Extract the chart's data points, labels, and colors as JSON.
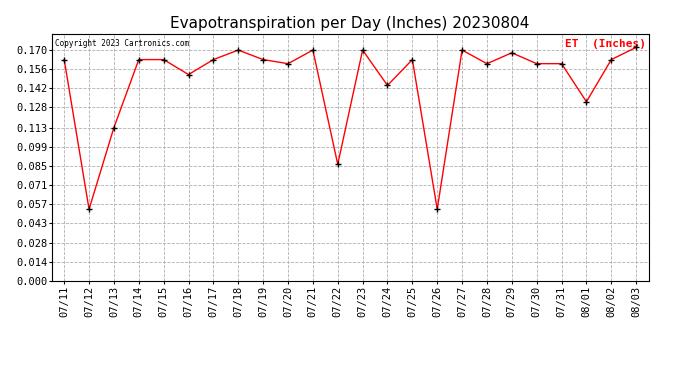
{
  "title": "Evapotranspiration per Day (Inches) 20230804",
  "copyright": "Copyright 2023 Cartronics.com",
  "legend_label": "ET  (Inches)",
  "dates": [
    "07/11",
    "07/12",
    "07/13",
    "07/14",
    "07/15",
    "07/16",
    "07/17",
    "07/18",
    "07/19",
    "07/20",
    "07/21",
    "07/22",
    "07/23",
    "07/24",
    "07/25",
    "07/26",
    "07/27",
    "07/28",
    "07/29",
    "07/30",
    "07/31",
    "08/01",
    "08/02",
    "08/03"
  ],
  "values": [
    0.163,
    0.053,
    0.113,
    0.163,
    0.163,
    0.152,
    0.163,
    0.17,
    0.163,
    0.16,
    0.17,
    0.086,
    0.17,
    0.144,
    0.163,
    0.053,
    0.17,
    0.16,
    0.168,
    0.16,
    0.16,
    0.132,
    0.163,
    0.172
  ],
  "line_color": "#ff0000",
  "marker_color": "#000000",
  "background_color": "#ffffff",
  "grid_color": "#b0b0b0",
  "yticks": [
    0.0,
    0.014,
    0.028,
    0.043,
    0.057,
    0.071,
    0.085,
    0.099,
    0.113,
    0.128,
    0.142,
    0.156,
    0.17
  ],
  "ylim": [
    0.0,
    0.182
  ],
  "title_fontsize": 11,
  "legend_color": "#ff0000",
  "copyright_color": "#000000",
  "tick_fontsize": 7.5,
  "ytick_fontsize": 7.5
}
